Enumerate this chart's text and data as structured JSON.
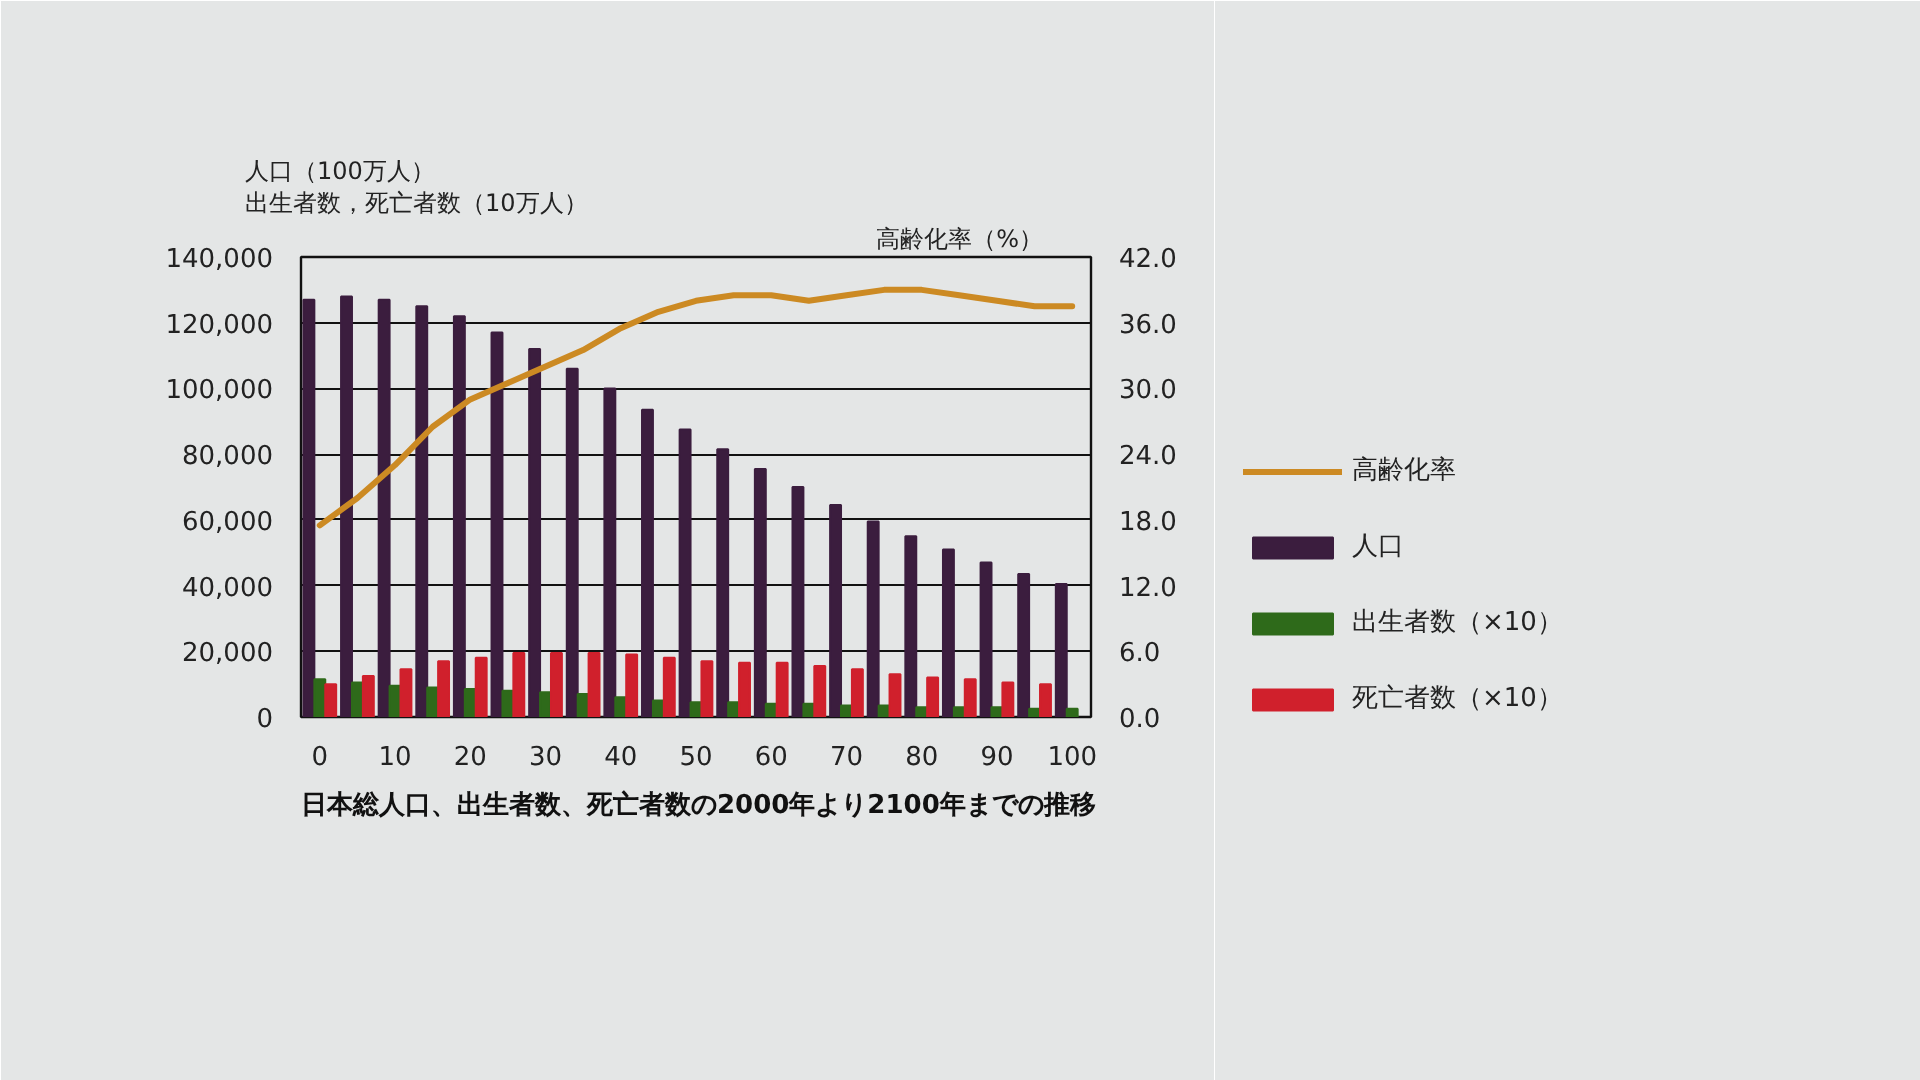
{
  "chart_data": {
    "type": "bar",
    "title": "日本総人口、出生者数、死亡者数の2000年より2100年までの推移",
    "ylabel": "人口（100万人）",
    "y2label": "高齢化率（%）",
    "annotations": [
      "出生者数，死亡者数（10万人）"
    ],
    "x": [
      0,
      5,
      10,
      15,
      20,
      25,
      30,
      35,
      40,
      45,
      50,
      55,
      60,
      65,
      70,
      75,
      80,
      85,
      90,
      95,
      100
    ],
    "xlim": [
      -2.5,
      102.5
    ],
    "xticks": [
      0,
      10,
      20,
      30,
      40,
      50,
      60,
      70,
      80,
      90,
      100
    ],
    "ylim": [
      0,
      140000
    ],
    "yticks": [
      {
        "value": 0,
        "label": "0"
      },
      {
        "value": 20000,
        "label": "20,000"
      },
      {
        "value": 40000,
        "label": "40,000"
      },
      {
        "value": 60000,
        "label": "60,000"
      },
      {
        "value": 80000,
        "label": "80,000"
      },
      {
        "value": 100000,
        "label": "100,000"
      },
      {
        "value": 120000,
        "label": "120,000"
      },
      {
        "value": 140000,
        "label": "140,000"
      }
    ],
    "y2lim": [
      0,
      42
    ],
    "y2ticks": [
      {
        "value": 0,
        "label": "0.0"
      },
      {
        "value": 6,
        "label": "6.0"
      },
      {
        "value": 12,
        "label": "12.0"
      },
      {
        "value": 18,
        "label": "18.0"
      },
      {
        "value": 24,
        "label": "24.0"
      },
      {
        "value": 30,
        "label": "30.0"
      },
      {
        "value": 36,
        "label": "36.0"
      },
      {
        "value": 42,
        "label": "42.0"
      }
    ],
    "grid": "y",
    "legend": "right",
    "series": [
      {
        "name": "高齢化率",
        "type": "line",
        "axis": "y2",
        "color": "#cc8a23",
        "values": [
          17.5,
          20,
          23,
          26.5,
          29,
          30.5,
          32,
          33.5,
          35.5,
          37,
          38,
          38.5,
          38.5,
          38,
          38.5,
          39,
          39,
          38.5,
          38,
          37.5,
          37.5
        ]
      },
      {
        "name": "人口",
        "color": "#3b1d3e",
        "values": [
          127000,
          128000,
          127000,
          125000,
          122000,
          117000,
          112000,
          106000,
          100000,
          93500,
          87500,
          81500,
          75500,
          70000,
          64500,
          59500,
          55000,
          51000,
          47000,
          43500,
          40500
        ]
      },
      {
        "name": "出生者数（×10）",
        "color": "#2e6a1a",
        "values": [
          11500,
          10500,
          9500,
          9000,
          8500,
          8000,
          7500,
          7000,
          6000,
          5000,
          4500,
          4500,
          4000,
          4000,
          3500,
          3500,
          3000,
          3000,
          3000,
          2500,
          2500
        ]
      },
      {
        "name": "死亡者数（×10）",
        "color": "#d0202c",
        "values": [
          10000,
          12500,
          14500,
          17000,
          18000,
          19500,
          19500,
          19500,
          19000,
          18000,
          17000,
          16500,
          16500,
          15500,
          14500,
          13000,
          12000,
          11500,
          10500,
          10000,
          null
        ]
      }
    ]
  }
}
